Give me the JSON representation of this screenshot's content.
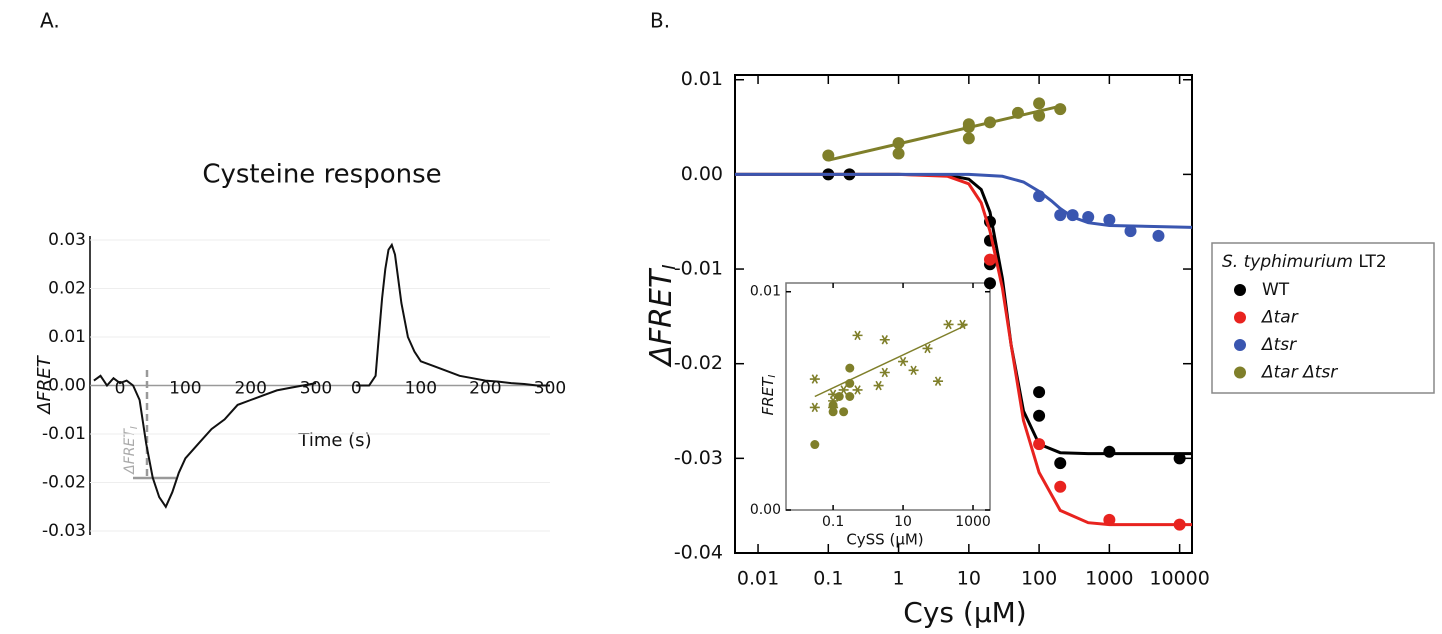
{
  "chart_data": [
    {
      "type": "line",
      "panel_label": "A.",
      "title": "Cysteine response",
      "ylabel": "ΔFRET",
      "xlabel": "Time (s)",
      "annotation": "ΔFRET",
      "annotation_sub": "I",
      "xlim": [
        -46,
        300
      ],
      "xticks": [
        0,
        100,
        200,
        300
      ],
      "ylim": [
        -0.03,
        0.03
      ],
      "yticks": [
        0.03,
        0.02,
        0.01,
        {
          "value": 0,
          "label": "0.00"
        },
        -0.01,
        -0.02,
        -0.03
      ],
      "grid": true,
      "series": [
        {
          "color": "#111111",
          "x": [
            -40,
            -30,
            -20,
            -10,
            0,
            10,
            20,
            30,
            40,
            50,
            60,
            70,
            80,
            90,
            100,
            120,
            140,
            160,
            180,
            200,
            220,
            240,
            260,
            280,
            300
          ],
          "values": [
            0.001,
            0.002,
            0.0,
            0.0015,
            0.0005,
            0.001,
            0.0,
            -0.003,
            -0.012,
            -0.019,
            -0.023,
            -0.025,
            -0.022,
            -0.018,
            -0.015,
            -0.012,
            -0.009,
            -0.007,
            -0.004,
            -0.003,
            -0.002,
            -0.001,
            -0.0005,
            0.0,
            0.0005
          ]
        }
      ]
    },
    {
      "type": "line",
      "xlim": [
        -5,
        300
      ],
      "xticks": [
        0,
        100,
        200,
        300
      ],
      "series": [
        {
          "color": "#111111",
          "x": [
            0,
            10,
            20,
            30,
            35,
            40,
            45,
            50,
            55,
            60,
            65,
            70,
            80,
            90,
            100,
            120,
            140,
            160,
            180,
            200,
            220,
            240,
            260,
            280,
            300
          ],
          "values": [
            0.0,
            0.0,
            0.0,
            0.002,
            0.01,
            0.018,
            0.024,
            0.028,
            0.029,
            0.027,
            0.022,
            0.017,
            0.01,
            0.007,
            0.005,
            0.004,
            0.003,
            0.002,
            0.0015,
            0.001,
            0.0008,
            0.0005,
            0.0003,
            0.0,
            0.0
          ]
        }
      ]
    },
    {
      "type": "scatter",
      "panel_label": "B.",
      "xscale": "log",
      "xlabel": "Cys (μM)",
      "ylabel": "ΔFRET",
      "ylabel_sub": "I",
      "legend_title": "S. typhimurium",
      "legend_title_suffix": "LT2",
      "legend": "right",
      "xlim": [
        0.0047,
        15000
      ],
      "xticks": [
        0.01,
        0.1,
        1,
        10,
        100,
        1000,
        10000
      ],
      "ylim": [
        -0.04,
        0.0105
      ],
      "yticks": [
        0.01,
        {
          "value": 0,
          "label": "0.00"
        },
        -0.01,
        -0.02,
        -0.03,
        -0.04
      ],
      "series": [
        {
          "name": "WT",
          "color": "#000000",
          "x": [
            0.1,
            0.2,
            20,
            20,
            20,
            20,
            100,
            100,
            200,
            1000,
            10000
          ],
          "values": [
            0,
            0,
            -0.005,
            -0.007,
            -0.0095,
            -0.0115,
            -0.023,
            -0.0255,
            -0.0305,
            -0.0293,
            -0.03
          ],
          "fit_x": [
            0.0047,
            0.1,
            1,
            5,
            10,
            15,
            20,
            30,
            40,
            60,
            100,
            200,
            500,
            1000,
            15000
          ],
          "fit_values": [
            0,
            0,
            0,
            -0.0001,
            -0.0005,
            -0.0016,
            -0.004,
            -0.011,
            -0.018,
            -0.025,
            -0.0285,
            -0.0294,
            -0.0295,
            -0.0295,
            -0.0295
          ]
        },
        {
          "name": "Δtar",
          "color": "#e8231f",
          "x": [
            20,
            100,
            200,
            1000,
            10000
          ],
          "values": [
            -0.009,
            -0.0285,
            -0.033,
            -0.0365,
            -0.037
          ],
          "fit_x": [
            0.0047,
            0.1,
            1,
            5,
            10,
            15,
            20,
            30,
            40,
            60,
            100,
            200,
            500,
            1000,
            15000
          ],
          "fit_values": [
            0,
            0,
            0,
            -0.0002,
            -0.001,
            -0.003,
            -0.006,
            -0.012,
            -0.018,
            -0.026,
            -0.0315,
            -0.0355,
            -0.0368,
            -0.037,
            -0.037
          ]
        },
        {
          "name": "Δtsr",
          "color": "#3a56b0",
          "x": [
            100,
            200,
            300,
            500,
            1000,
            2000,
            5000
          ],
          "values": [
            -0.0023,
            -0.0043,
            -0.0043,
            -0.0045,
            -0.0048,
            -0.006,
            -0.0065
          ],
          "fit_x": [
            0.0047,
            1,
            10,
            30,
            60,
            100,
            150,
            200,
            300,
            500,
            1000,
            15000
          ],
          "fit_values": [
            0,
            0,
            0,
            -0.0002,
            -0.0008,
            -0.0018,
            -0.0028,
            -0.0036,
            -0.0045,
            -0.0051,
            -0.0054,
            -0.0056
          ]
        },
        {
          "name": "Δtar Δtsr",
          "color": "#7f7f2a",
          "x": [
            0.1,
            1,
            1,
            10,
            10,
            10,
            20,
            50,
            100,
            100,
            200
          ],
          "values": [
            0.002,
            0.0033,
            0.0022,
            0.005,
            0.0053,
            0.0038,
            0.0055,
            0.0065,
            0.0075,
            0.0062,
            0.0069
          ],
          "fit_x": [
            0.1,
            200
          ],
          "fit_values": [
            0.0015,
            0.0072
          ]
        }
      ]
    },
    {
      "type": "scatter",
      "xscale": "log",
      "xlabel": "CySS (μM)",
      "ylabel": "FRET",
      "ylabel_sub": "I",
      "xlim": [
        0.0045,
        3060
      ],
      "xticks": [
        0.1,
        10,
        1000
      ],
      "ylim": [
        0,
        0.0104
      ],
      "yticks": [
        0.01,
        {
          "value": 0,
          "label": "0.00"
        }
      ],
      "series": [
        {
          "color": "#7f7f2a",
          "marker": "circle",
          "x": [
            0.03,
            0.1,
            0.1,
            0.15,
            0.2,
            0.3,
            0.3,
            0.3
          ],
          "values": [
            0.003,
            0.0045,
            0.0048,
            0.0052,
            0.0045,
            0.0058,
            0.0052,
            0.0065
          ],
          "fit_x": [
            0.03,
            700
          ],
          "fit_values": [
            0.0052,
            0.0085
          ]
        },
        {
          "color": "#7f7f2a",
          "marker": "star",
          "x": [
            0.03,
            0.03,
            0.1,
            0.1,
            0.1,
            0.2,
            0.5,
            0.5,
            2,
            3,
            3,
            10,
            20,
            50,
            100,
            200,
            500
          ],
          "values": [
            0.0047,
            0.006,
            0.0047,
            0.005,
            0.0053,
            0.0055,
            0.0055,
            0.008,
            0.0057,
            0.0078,
            0.0063,
            0.0068,
            0.0064,
            0.0074,
            0.0059,
            0.0085,
            0.0085
          ]
        }
      ]
    }
  ]
}
